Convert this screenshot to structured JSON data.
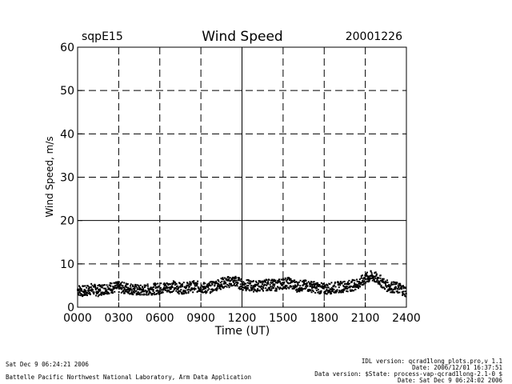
{
  "header": {
    "site": "sqpE15",
    "title": "Wind Speed",
    "date": "20001226"
  },
  "chart_data": {
    "type": "scatter",
    "title": "Wind Speed",
    "xlabel": "Time (UT)",
    "ylabel": "Wind Speed, m/s",
    "xlim": [
      0,
      24
    ],
    "ylim": [
      0,
      60
    ],
    "x_ticks": [
      0,
      3,
      6,
      9,
      12,
      15,
      18,
      21,
      24
    ],
    "x_tick_labels": [
      "0000",
      "0300",
      "0600",
      "0900",
      "1200",
      "1500",
      "1800",
      "2100",
      "2400"
    ],
    "y_ticks": [
      0,
      10,
      20,
      30,
      40,
      50,
      60
    ],
    "y_tick_labels": [
      "0",
      "10",
      "20",
      "30",
      "40",
      "50",
      "60"
    ],
    "grid": "dashed vertical at 3 h intervals, dashed horizontal at 10 m/s intervals; solid lines at 1200 and 20 m/s",
    "marker_color": "#000000",
    "series": [
      {
        "x": [
          0,
          0.5,
          1,
          1.5,
          2,
          2.5,
          3,
          3.5,
          4,
          4.5,
          5,
          5.5,
          6,
          6.5,
          7,
          7.5,
          8,
          8.5,
          9,
          9.5,
          10,
          10.5,
          11,
          11.5,
          12,
          12.5,
          13,
          13.5,
          14,
          14.5,
          15,
          15.5,
          16,
          16.5,
          17,
          17.5,
          18,
          18.5,
          19,
          19.5,
          20,
          20.5,
          21,
          21.5,
          22,
          22.5,
          23,
          23.5,
          24
        ],
        "y": [
          4.0,
          3.6,
          4.2,
          3.8,
          4.3,
          4.5,
          4.6,
          4.4,
          4.2,
          3.8,
          4.0,
          4.2,
          4.3,
          4.6,
          4.8,
          4.3,
          4.5,
          4.8,
          4.6,
          4.3,
          5.0,
          5.5,
          5.8,
          6.0,
          5.2,
          5.0,
          4.8,
          5.0,
          5.2,
          5.0,
          5.5,
          5.6,
          4.8,
          5.0,
          4.8,
          4.5,
          4.2,
          4.4,
          4.6,
          4.8,
          5.0,
          5.4,
          6.6,
          7.2,
          6.4,
          5.0,
          4.6,
          4.4,
          3.6
        ]
      }
    ]
  },
  "footer": {
    "generated": "Sat Dec  9 06:24:21 2006",
    "organization": "Battelle Pacific Northwest National Laboratory, Arm Data Application",
    "idl_version": "IDL version: qcrad1long_plots.pro,v 1.1",
    "date_line": "Date: 2006/12/01 16:37:51",
    "data_version": "Data version: $State: process-vap-qcrad1long-2.1-0 $",
    "date2": "Date: Sat Dec  9 06:24:02 2006"
  }
}
